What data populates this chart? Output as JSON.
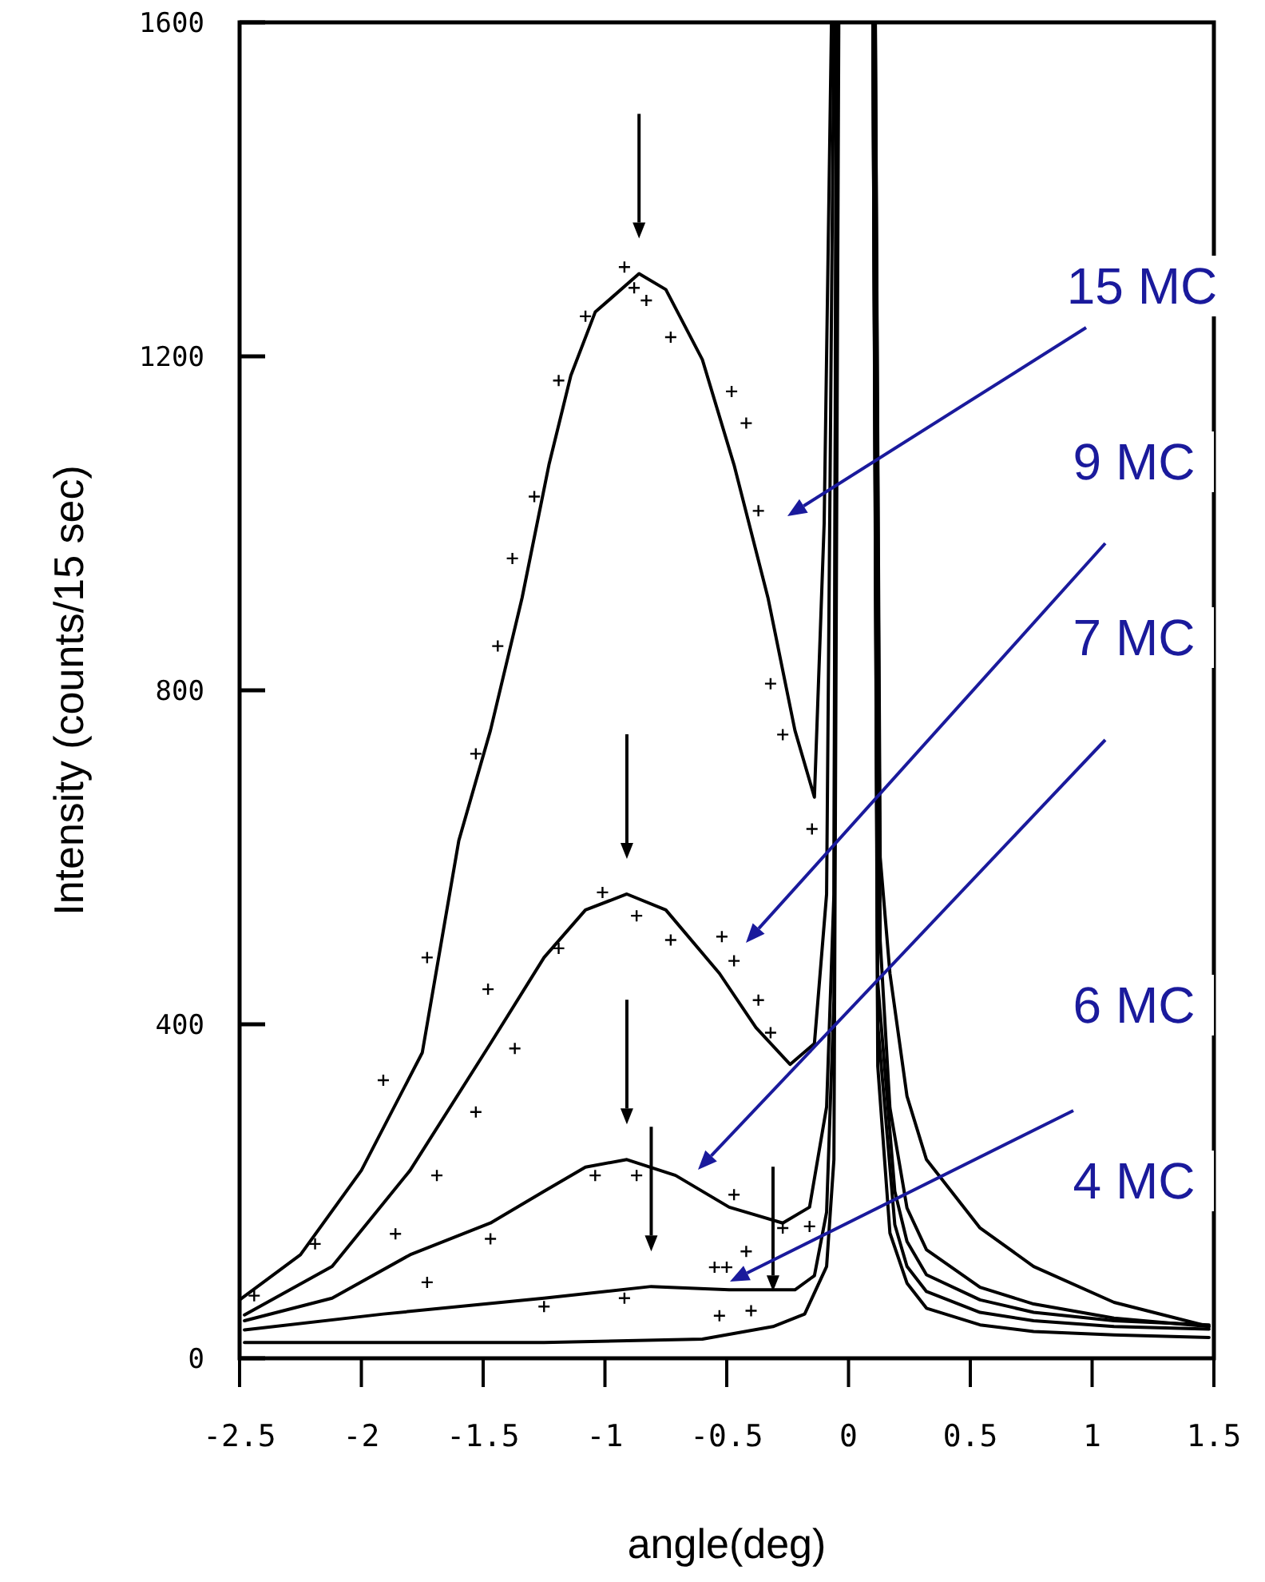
{
  "chart_data": {
    "type": "line",
    "xlabel": "angle(deg)",
    "ylabel": "Intensity (counts/15 sec)",
    "xlim": [
      -2.5,
      1.5
    ],
    "ylim": [
      0,
      1600
    ],
    "xticks": [
      {
        "value": -2.5,
        "label": "-2.5"
      },
      -2,
      {
        "value": -1.5,
        "label": "-1.5"
      },
      -1,
      {
        "value": -0.5,
        "label": "-0.5"
      },
      0,
      {
        "value": 0.5,
        "label": "0.5"
      },
      1,
      {
        "value": 1.5,
        "label": "1.5"
      }
    ],
    "yticks": [
      0,
      400,
      800,
      1200,
      1600
    ],
    "grid": false,
    "series": [
      {
        "color": "#000000",
        "x": [
          -2.5,
          -2.25,
          -2.0,
          -1.75,
          -1.6,
          -1.47,
          -1.34,
          -1.23,
          -1.14,
          -1.04,
          -0.86,
          -0.75,
          -0.6,
          -0.47,
          -0.33,
          -0.22,
          -0.14,
          -0.1,
          -0.07,
          0.02,
          0.11,
          0.13,
          0.17,
          0.24,
          0.32,
          0.54,
          0.76,
          1.09,
          1.48
        ],
        "values": [
          70,
          124,
          225,
          366,
          620,
          752,
          911,
          1070,
          1177,
          1253,
          1299,
          1280,
          1196,
          1070,
          910,
          752,
          672,
          1000,
          1600,
          null,
          1600,
          600,
          461,
          314,
          238,
          156,
          110,
          67,
          38
        ]
      },
      {
        "color": "#000000",
        "x": [
          -2.48,
          -2.12,
          -1.8,
          -1.47,
          -1.25,
          -1.08,
          -0.91,
          -0.75,
          -0.53,
          -0.38,
          -0.24,
          -0.14,
          -0.09,
          -0.06,
          0.02,
          0.11,
          0.13,
          0.17,
          0.24,
          0.32,
          0.54,
          0.76,
          1.09,
          1.48
        ],
        "values": [
          52,
          110,
          225,
          377,
          480,
          537,
          556,
          537,
          461,
          396,
          352,
          377,
          556,
          1600,
          null,
          1600,
          500,
          300,
          180,
          130,
          85,
          65,
          48,
          38
        ]
      },
      {
        "color": "#000000",
        "x": [
          -2.48,
          -2.12,
          -1.8,
          -1.47,
          -1.25,
          -1.08,
          -0.91,
          -0.71,
          -0.49,
          -0.27,
          -0.16,
          -0.09,
          -0.06,
          -0.05,
          0.02,
          0.1,
          0.12,
          0.19,
          0.24,
          0.32,
          0.54,
          0.76,
          1.09,
          1.48
        ],
        "values": [
          45,
          72,
          124,
          162,
          200,
          229,
          238,
          219,
          181,
          162,
          181,
          301,
          556,
          1600,
          null,
          1600,
          450,
          200,
          140,
          100,
          70,
          55,
          45,
          40
        ]
      },
      {
        "color": "#000000",
        "x": [
          -2.48,
          -1.91,
          -1.25,
          -0.81,
          -0.49,
          -0.22,
          -0.14,
          -0.09,
          -0.06,
          -0.05,
          0.02,
          0.1,
          0.12,
          0.19,
          0.24,
          0.32,
          0.54,
          0.76,
          1.09,
          1.48
        ],
        "values": [
          34,
          53,
          72,
          86,
          82,
          82,
          99,
          175,
          429,
          1600,
          null,
          1600,
          400,
          160,
          110,
          80,
          55,
          45,
          38,
          35
        ]
      },
      {
        "color": "#000000",
        "x": [
          -2.48,
          -1.25,
          -0.6,
          -0.31,
          -0.18,
          -0.09,
          -0.06,
          -0.04,
          0.02,
          0.1,
          0.12,
          0.17,
          0.24,
          0.32,
          0.54,
          0.76,
          1.09,
          1.48
        ],
        "values": [
          19,
          19,
          23,
          38,
          53,
          110,
          238,
          1600,
          null,
          1600,
          350,
          150,
          90,
          60,
          40,
          32,
          28,
          25
        ]
      },
      {
        "type": "scatter",
        "marker": "cross",
        "color": "#000000",
        "x": [
          -2.44,
          -2.19,
          -1.91,
          -1.73,
          -1.53,
          -1.44,
          -1.38,
          -1.29,
          -1.19,
          -1.08,
          -0.92,
          -0.88,
          -0.83,
          -0.73,
          -0.48,
          -0.42,
          -0.37,
          -0.32,
          -0.27,
          -0.15
        ],
        "values": [
          75,
          137,
          333,
          480,
          724,
          853,
          958,
          1032,
          1171,
          1248,
          1307,
          1282,
          1267,
          1223,
          1158,
          1120,
          1015,
          808,
          747,
          634
        ]
      },
      {
        "type": "scatter",
        "marker": "cross",
        "color": "#000000",
        "x": [
          -1.86,
          -1.69,
          -1.53,
          -1.48,
          -1.37,
          -1.19,
          -1.01,
          -0.87,
          -0.73,
          -0.52,
          -0.47,
          -0.37,
          -0.32
        ],
        "values": [
          149,
          219,
          295,
          442,
          371,
          491,
          558,
          530,
          501,
          505,
          476,
          429,
          390
        ]
      },
      {
        "type": "scatter",
        "marker": "cross",
        "color": "#000000",
        "x": [
          -1.73,
          -1.47,
          -1.04,
          -0.87,
          -0.47,
          -0.27,
          -0.16
        ],
        "values": [
          91,
          143,
          219,
          219,
          196,
          156,
          158
        ]
      },
      {
        "type": "scatter",
        "marker": "cross",
        "color": "#000000",
        "x": [
          -1.25,
          -0.92,
          -0.55,
          -0.5,
          -0.42,
          -0.53,
          -0.4
        ],
        "values": [
          62,
          72,
          109,
          109,
          128,
          51,
          57
        ]
      }
    ],
    "annotations": [
      "15 MC",
      "9 MC",
      "7 MC",
      "6 MC",
      "4 MC"
    ]
  }
}
